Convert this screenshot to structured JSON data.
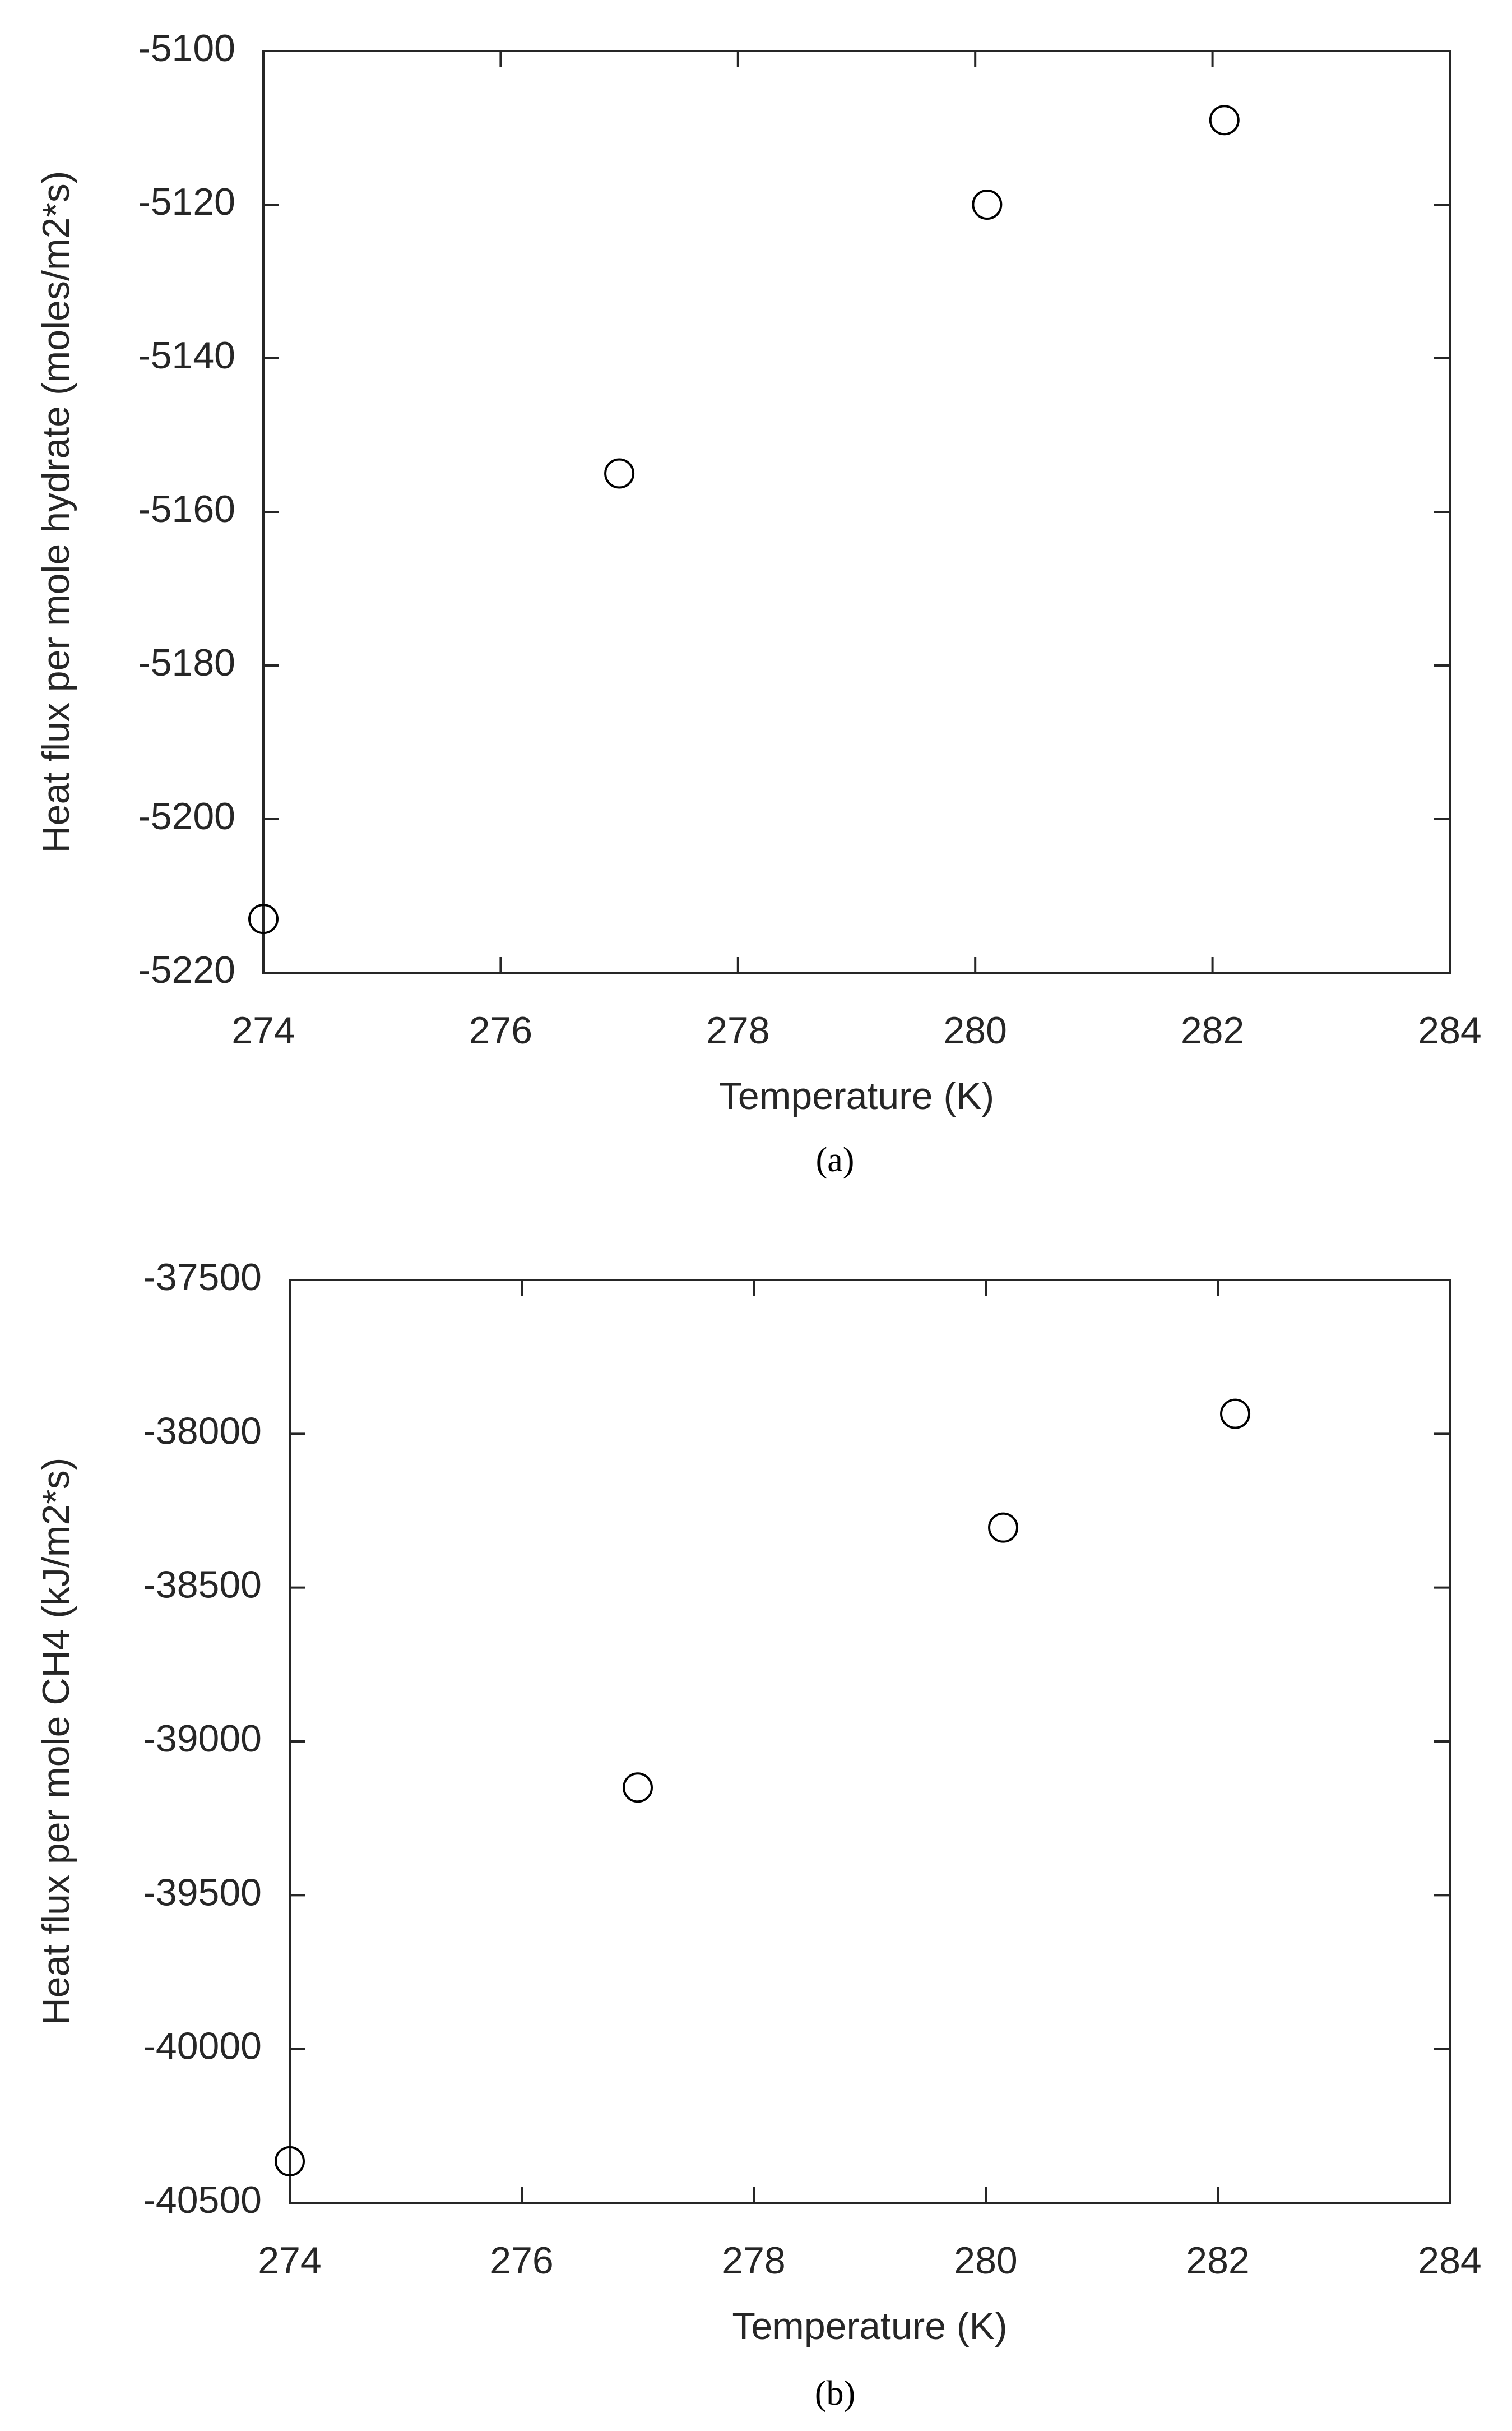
{
  "chart_data": [
    {
      "type": "scatter",
      "x_label": "Temperature (K)",
      "y_label": "Heat flux per mole hydrate (moles/m2*s)",
      "caption": "(a)",
      "x": [
        274.0,
        277.0,
        280.1,
        282.1
      ],
      "values": [
        -5213,
        -5155,
        -5120,
        -5109
      ],
      "color": "#000000",
      "xlim": [
        274,
        284
      ],
      "xticks": [
        274,
        276,
        278,
        280,
        282,
        284
      ],
      "ylim": [
        -5220,
        -5100
      ],
      "yticks": [
        -5220,
        -5200,
        -5180,
        -5160,
        -5140,
        -5120,
        -5100
      ]
    },
    {
      "type": "scatter",
      "x_label": "Temperature (K)",
      "y_label": "Heat flux per mole CH4 (kJ/m2*s)",
      "caption": "(b)",
      "x": [
        274.0,
        277.0,
        280.15,
        282.15
      ],
      "values": [
        -40365,
        -39150,
        -38305,
        -37935
      ],
      "color": "#000000",
      "xlim": [
        274,
        284
      ],
      "xticks": [
        274,
        276,
        278,
        280,
        282,
        284
      ],
      "ylim": [
        -40500,
        -37500
      ],
      "yticks": [
        -40500,
        -40000,
        -39500,
        -39000,
        -38500,
        -38000,
        -37500
      ]
    }
  ]
}
